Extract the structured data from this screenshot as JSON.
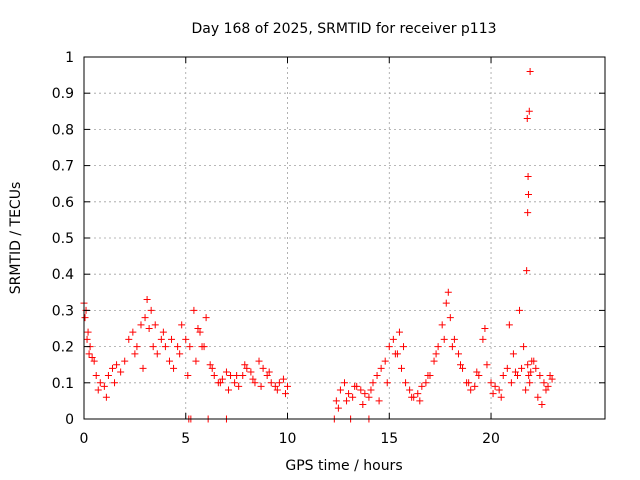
{
  "chart_data": {
    "type": "scatter",
    "title": "Day 168 of 2025, SRMTID for receiver p113",
    "xlabel": "GPS time / hours",
    "ylabel": "SRMTID / TECUs",
    "xlim": [
      0,
      25.6
    ],
    "ylim": [
      0,
      1
    ],
    "xticks": [
      "0",
      "5",
      "10",
      "15",
      "20"
    ],
    "xtick_values": [
      0,
      5,
      10,
      15,
      20
    ],
    "yticks": [
      "0",
      "0.1",
      "0.2",
      "0.3",
      "0.4",
      "0.5",
      "0.6",
      "0.7",
      "0.8",
      "0.9",
      "1"
    ],
    "ytick_values": [
      0,
      0.1,
      0.2,
      0.3,
      0.4,
      0.5,
      0.6,
      0.7,
      0.8,
      0.9,
      1
    ],
    "grid": true,
    "marker": "+",
    "color": "#ff0000",
    "series": [
      {
        "name": "SRMTID",
        "x": [
          0.0,
          0.1,
          0.2,
          0.3,
          0.4,
          0.5,
          0.6,
          0.8,
          1.0,
          1.2,
          1.4,
          1.6,
          1.8,
          2.0,
          2.2,
          2.4,
          2.6,
          2.8,
          3.0,
          3.1,
          3.2,
          3.4,
          3.6,
          3.8,
          4.0,
          4.2,
          4.4,
          4.6,
          4.8,
          5.0,
          5.2,
          5.4,
          5.6,
          5.8,
          6.0,
          6.2,
          6.4,
          6.6,
          6.8,
          7.0,
          7.2,
          7.4,
          7.6,
          7.8,
          8.0,
          8.2,
          8.4,
          8.6,
          8.8,
          9.0,
          9.2,
          9.4,
          9.6,
          9.8,
          10.0,
          12.4,
          12.6,
          12.8,
          13.0,
          13.2,
          13.4,
          13.6,
          13.8,
          14.0,
          14.2,
          14.4,
          14.6,
          14.8,
          15.0,
          15.2,
          15.4,
          15.6,
          15.8,
          16.0,
          16.2,
          16.4,
          16.6,
          16.8,
          17.0,
          17.2,
          17.4,
          17.6,
          17.8,
          18.0,
          18.2,
          18.4,
          18.6,
          18.8,
          19.0,
          19.2,
          19.4,
          19.6,
          19.8,
          20.0,
          20.2,
          20.4,
          20.6,
          20.8,
          21.0,
          21.2,
          21.4,
          21.6,
          21.8,
          21.85,
          21.9,
          21.95,
          22.0,
          22.2,
          22.4,
          22.6,
          22.8,
          23.0,
          0.05,
          0.15,
          0.25,
          0.7,
          1.1,
          1.5,
          2.5,
          2.9,
          3.3,
          3.5,
          3.9,
          4.3,
          4.7,
          5.1,
          5.5,
          5.7,
          5.9,
          6.3,
          6.7,
          7.1,
          7.5,
          7.9,
          8.3,
          8.7,
          9.1,
          9.5,
          9.9,
          12.5,
          12.9,
          13.3,
          13.7,
          14.1,
          14.5,
          14.9,
          15.3,
          15.5,
          15.7,
          16.1,
          16.5,
          16.9,
          17.3,
          17.7,
          17.9,
          18.1,
          18.5,
          18.9,
          19.3,
          19.7,
          20.1,
          20.5,
          20.9,
          21.1,
          21.3,
          21.5,
          21.7,
          22.1,
          22.3,
          22.5,
          22.7,
          22.9,
          5.15,
          5.25,
          6.1,
          7.0,
          12.3,
          13.1,
          14.0,
          21.75,
          21.8,
          21.82,
          21.78,
          21.88,
          21.92,
          21.84
        ],
        "y": [
          0.32,
          0.3,
          0.24,
          0.2,
          0.17,
          0.16,
          0.12,
          0.1,
          0.09,
          0.12,
          0.14,
          0.15,
          0.13,
          0.16,
          0.22,
          0.24,
          0.2,
          0.26,
          0.28,
          0.33,
          0.25,
          0.2,
          0.18,
          0.22,
          0.2,
          0.16,
          0.14,
          0.2,
          0.26,
          0.22,
          0.2,
          0.3,
          0.25,
          0.2,
          0.28,
          0.15,
          0.12,
          0.1,
          0.11,
          0.13,
          0.12,
          0.1,
          0.09,
          0.12,
          0.14,
          0.13,
          0.1,
          0.16,
          0.14,
          0.12,
          0.1,
          0.09,
          0.1,
          0.11,
          0.09,
          0.05,
          0.08,
          0.1,
          0.07,
          0.06,
          0.09,
          0.08,
          0.07,
          0.06,
          0.1,
          0.12,
          0.14,
          0.16,
          0.2,
          0.22,
          0.18,
          0.14,
          0.1,
          0.08,
          0.06,
          0.07,
          0.09,
          0.1,
          0.12,
          0.16,
          0.2,
          0.26,
          0.32,
          0.28,
          0.22,
          0.18,
          0.14,
          0.1,
          0.08,
          0.09,
          0.12,
          0.22,
          0.15,
          0.1,
          0.09,
          0.08,
          0.12,
          0.14,
          0.1,
          0.13,
          0.3,
          0.2,
          0.15,
          0.12,
          0.1,
          0.13,
          0.16,
          0.14,
          0.12,
          0.1,
          0.09,
          0.11,
          0.28,
          0.22,
          0.18,
          0.08,
          0.06,
          0.1,
          0.18,
          0.14,
          0.3,
          0.26,
          0.24,
          0.22,
          0.18,
          0.12,
          0.16,
          0.24,
          0.2,
          0.14,
          0.1,
          0.08,
          0.12,
          0.15,
          0.11,
          0.09,
          0.13,
          0.08,
          0.07,
          0.03,
          0.05,
          0.09,
          0.04,
          0.08,
          0.05,
          0.1,
          0.18,
          0.24,
          0.2,
          0.06,
          0.05,
          0.12,
          0.18,
          0.22,
          0.35,
          0.2,
          0.15,
          0.1,
          0.13,
          0.25,
          0.07,
          0.06,
          0.26,
          0.18,
          0.12,
          0.14,
          0.08,
          0.16,
          0.06,
          0.04,
          0.08,
          0.12,
          0.0,
          0.0,
          0.0,
          0.0,
          0.0,
          0.0,
          0.0,
          0.41,
          0.57,
          0.67,
          0.83,
          0.85,
          0.96,
          0.62
        ]
      }
    ]
  }
}
